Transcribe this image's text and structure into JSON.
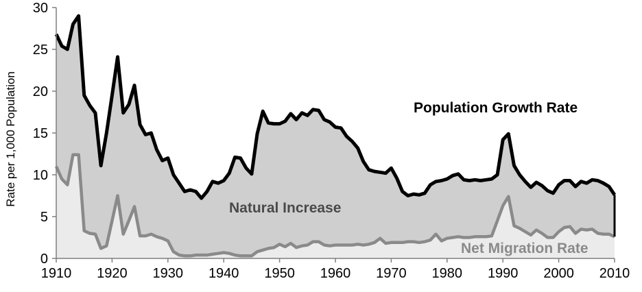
{
  "chart_data": {
    "type": "area",
    "title": "",
    "xlabel": "",
    "ylabel": "Rate per 1,000 Population",
    "xlim": [
      1910,
      2010
    ],
    "ylim": [
      0,
      30
    ],
    "x_ticks": [
      1910,
      1920,
      1930,
      1940,
      1950,
      1960,
      1970,
      1980,
      1990,
      2000,
      2010
    ],
    "y_ticks": [
      0,
      5,
      10,
      15,
      20,
      25,
      30
    ],
    "grid": false,
    "annotations": {
      "growth": "Population Growth Rate",
      "natural": "Natural Increase",
      "migration": "Net Migration Rate"
    },
    "colors": {
      "growth_line": "#000000",
      "natural_fill": "#cfcfcf",
      "migration_fill": "#ebebeb",
      "migration_line": "#8a8a8a",
      "natural_label": "#4a4a4a",
      "migration_label": "#8a8a8a"
    },
    "series": [
      {
        "name": "Population Growth Rate",
        "x": [
          1910,
          1911,
          1912,
          1913,
          1914,
          1915,
          1916,
          1917,
          1918,
          1919,
          1920,
          1921,
          1922,
          1923,
          1924,
          1925,
          1926,
          1927,
          1928,
          1929,
          1930,
          1931,
          1932,
          1933,
          1934,
          1935,
          1936,
          1937,
          1938,
          1939,
          1940,
          1941,
          1942,
          1943,
          1944,
          1945,
          1946,
          1947,
          1948,
          1949,
          1950,
          1951,
          1952,
          1953,
          1954,
          1955,
          1956,
          1957,
          1958,
          1959,
          1960,
          1961,
          1962,
          1963,
          1964,
          1965,
          1966,
          1967,
          1968,
          1969,
          1970,
          1971,
          1972,
          1973,
          1974,
          1975,
          1976,
          1977,
          1978,
          1979,
          1980,
          1981,
          1982,
          1983,
          1984,
          1985,
          1986,
          1987,
          1988,
          1989,
          1990,
          1991,
          1992,
          1993,
          1994,
          1995,
          1996,
          1997,
          1998,
          1999,
          2000,
          2001,
          2002,
          2003,
          2004,
          2005,
          2006,
          2007,
          2008,
          2009,
          2010
        ],
        "values": [
          26.8,
          25.4,
          25.0,
          28.0,
          29.0,
          19.5,
          18.3,
          17.4,
          11.1,
          15.0,
          19.5,
          24.1,
          17.4,
          18.4,
          20.7,
          16.0,
          14.8,
          15.0,
          13.0,
          11.7,
          12.0,
          10.0,
          9.0,
          8.0,
          8.2,
          8.0,
          7.2,
          8.0,
          9.2,
          9.0,
          9.3,
          10.2,
          12.1,
          12.0,
          10.8,
          10.1,
          14.9,
          17.6,
          16.2,
          16.1,
          16.1,
          16.4,
          17.3,
          16.6,
          17.4,
          17.1,
          17.8,
          17.7,
          16.6,
          16.3,
          15.7,
          15.6,
          14.6,
          14.0,
          13.2,
          11.6,
          10.6,
          10.4,
          10.3,
          10.2,
          10.8,
          9.6,
          8.0,
          7.5,
          7.7,
          7.6,
          7.8,
          8.8,
          9.2,
          9.3,
          9.5,
          9.9,
          10.1,
          9.4,
          9.3,
          9.4,
          9.3,
          9.4,
          9.5,
          10.0,
          14.2,
          14.9,
          11.1,
          10.0,
          9.2,
          8.5,
          9.1,
          8.7,
          8.1,
          7.8,
          8.8,
          9.3,
          9.3,
          8.6,
          9.2,
          9.0,
          9.4,
          9.3,
          9.0,
          8.6,
          7.6
        ]
      },
      {
        "name": "Net Migration Rate",
        "x": [
          1910,
          1911,
          1912,
          1913,
          1914,
          1915,
          1916,
          1917,
          1918,
          1919,
          1920,
          1921,
          1922,
          1923,
          1924,
          1925,
          1926,
          1927,
          1928,
          1929,
          1930,
          1931,
          1932,
          1933,
          1934,
          1935,
          1936,
          1937,
          1938,
          1939,
          1940,
          1941,
          1942,
          1943,
          1944,
          1945,
          1946,
          1947,
          1948,
          1949,
          1950,
          1951,
          1952,
          1953,
          1954,
          1955,
          1956,
          1957,
          1958,
          1959,
          1960,
          1961,
          1962,
          1963,
          1964,
          1965,
          1966,
          1967,
          1968,
          1969,
          1970,
          1971,
          1972,
          1973,
          1974,
          1975,
          1976,
          1977,
          1978,
          1979,
          1980,
          1981,
          1982,
          1983,
          1984,
          1985,
          1986,
          1987,
          1988,
          1989,
          1990,
          1991,
          1992,
          1993,
          1994,
          1995,
          1996,
          1997,
          1998,
          1999,
          2000,
          2001,
          2002,
          2003,
          2004,
          2005,
          2006,
          2007,
          2008,
          2009,
          2010
        ],
        "values": [
          11.0,
          9.5,
          8.8,
          12.4,
          12.4,
          3.3,
          3.0,
          2.9,
          1.2,
          1.5,
          4.5,
          7.5,
          2.9,
          4.5,
          6.2,
          2.7,
          2.7,
          2.9,
          2.6,
          2.4,
          2.1,
          0.8,
          0.4,
          0.3,
          0.3,
          0.4,
          0.4,
          0.4,
          0.5,
          0.6,
          0.7,
          0.6,
          0.4,
          0.3,
          0.3,
          0.3,
          0.8,
          1.0,
          1.2,
          1.3,
          1.7,
          1.4,
          1.8,
          1.3,
          1.5,
          1.6,
          2.0,
          2.0,
          1.6,
          1.5,
          1.6,
          1.6,
          1.6,
          1.6,
          1.7,
          1.6,
          1.7,
          1.9,
          2.4,
          1.8,
          1.9,
          1.9,
          1.9,
          2.0,
          2.0,
          1.9,
          2.0,
          2.2,
          2.9,
          2.1,
          2.4,
          2.5,
          2.6,
          2.5,
          2.5,
          2.6,
          2.6,
          2.6,
          2.7,
          4.5,
          6.3,
          7.4,
          3.9,
          3.6,
          3.2,
          2.8,
          3.4,
          3.0,
          2.5,
          2.5,
          3.2,
          3.7,
          3.8,
          3.0,
          3.5,
          3.4,
          3.5,
          3.0,
          2.9,
          2.9,
          2.6
        ]
      }
    ]
  }
}
